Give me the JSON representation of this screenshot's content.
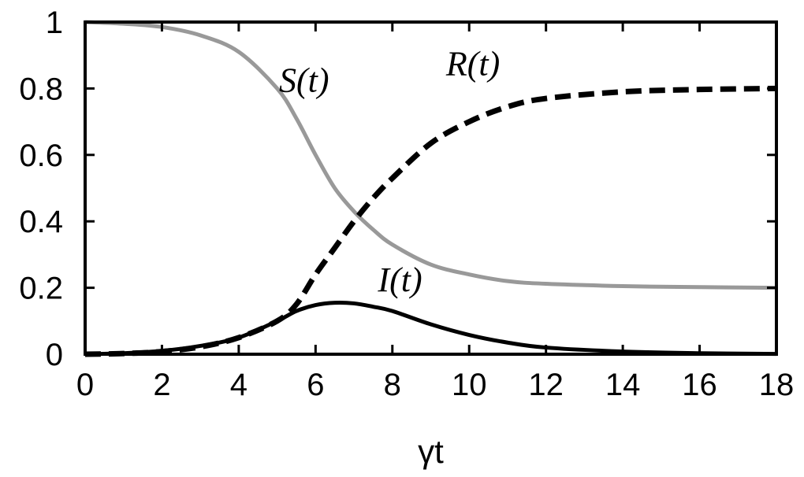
{
  "chart_data": {
    "type": "line",
    "title": "",
    "xlabel": "γt",
    "ylabel": "",
    "xlim": [
      0,
      18
    ],
    "ylim": [
      0,
      1
    ],
    "x_ticks": [
      "0",
      "2",
      "4",
      "6",
      "8",
      "10",
      "12",
      "14",
      "16",
      "18"
    ],
    "y_ticks": [
      "0",
      "0.2",
      "0.4",
      "0.6",
      "0.8",
      "1"
    ],
    "grid": false,
    "legend": "none",
    "x": [
      0,
      1,
      2,
      3,
      4,
      5,
      5.5,
      6,
      6.5,
      7,
      7.5,
      8,
      9,
      10,
      11,
      12,
      14,
      16,
      18
    ],
    "series": [
      {
        "name": "S(t)",
        "color": "#999999",
        "dash": "solid",
        "values": [
          1.0,
          0.995,
          0.985,
          0.96,
          0.91,
          0.8,
          0.71,
          0.6,
          0.5,
          0.43,
          0.375,
          0.33,
          0.27,
          0.24,
          0.22,
          0.212,
          0.205,
          0.202,
          0.2
        ]
      },
      {
        "name": "R(t)",
        "color": "#000000",
        "dash": "dashed",
        "values": [
          0.0,
          0.002,
          0.008,
          0.022,
          0.05,
          0.1,
          0.15,
          0.24,
          0.32,
          0.4,
          0.47,
          0.53,
          0.635,
          0.7,
          0.745,
          0.77,
          0.79,
          0.797,
          0.8
        ]
      },
      {
        "name": "I(t)",
        "color": "#000000",
        "dash": "solid",
        "values": [
          0.0,
          0.003,
          0.01,
          0.025,
          0.05,
          0.1,
          0.13,
          0.148,
          0.155,
          0.153,
          0.143,
          0.13,
          0.09,
          0.058,
          0.035,
          0.02,
          0.008,
          0.003,
          0.001
        ]
      }
    ],
    "annotations": [
      {
        "text": "S(t)",
        "series": "S(t)",
        "x": 5.7,
        "y": 0.79
      },
      {
        "text": "R(t)",
        "series": "R(t)",
        "x": 10.1,
        "y": 0.84
      },
      {
        "text": "I(t)",
        "series": "I(t)",
        "x": 8.2,
        "y": 0.19
      }
    ]
  }
}
